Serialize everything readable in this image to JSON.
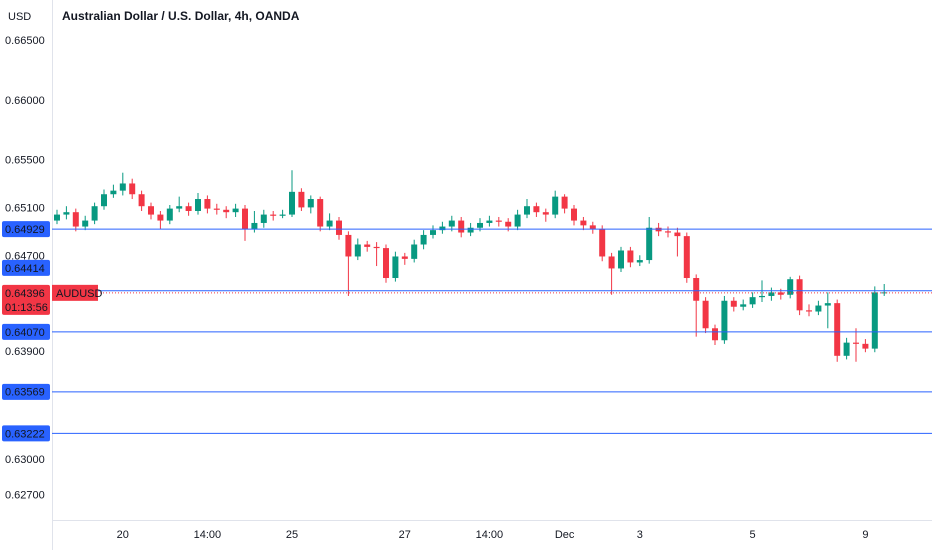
{
  "chart_data": {
    "type": "candlestick",
    "currency": "USD",
    "title": "Australian Dollar / U.S. Dollar, 4h, OANDA",
    "up_color": "#089981",
    "down_color": "#f23645",
    "line_color": "#2962ff",
    "ylim": [
      0.62498,
      0.66843
    ],
    "yticks": [
      {
        "value": 0.665,
        "label": "0.66500"
      },
      {
        "value": 0.66,
        "label": "0.66000"
      },
      {
        "value": 0.655,
        "label": "0.65500"
      },
      {
        "value": 0.651,
        "label": "0.65100"
      },
      {
        "value": 0.647,
        "label": "0.64700"
      },
      {
        "value": 0.639,
        "label": "0.63900"
      },
      {
        "value": 0.63,
        "label": "0.63000"
      },
      {
        "value": 0.627,
        "label": "0.62700"
      }
    ],
    "xticks": [
      {
        "value": 7,
        "label": "20"
      },
      {
        "value": 16,
        "label": "14:00"
      },
      {
        "value": 25,
        "label": "25"
      },
      {
        "value": 37,
        "label": "27"
      },
      {
        "value": 46,
        "label": "14:00"
      },
      {
        "value": 54,
        "label": "Dec"
      },
      {
        "value": 62,
        "label": "3"
      },
      {
        "value": 74,
        "label": "5"
      },
      {
        "value": 86,
        "label": "9"
      }
    ],
    "price_lines": [
      {
        "value": 0.64929,
        "label": "0.64929"
      },
      {
        "value": 0.64414,
        "label": "0.64414"
      },
      {
        "value": 0.6407,
        "label": "0.64070"
      },
      {
        "value": 0.63569,
        "label": "0.63569"
      },
      {
        "value": 0.63222,
        "label": "0.63222"
      }
    ],
    "last_price": {
      "value": 0.64396,
      "label": "0.64396",
      "symbol": "AUDUSD",
      "countdown": "01:13:56"
    },
    "open": [
      0.65,
      0.6505,
      0.6507,
      0.6495,
      0.65,
      0.6512,
      0.6522,
      0.6525,
      0.6531,
      0.6522,
      0.6512,
      0.6505,
      0.65,
      0.651,
      0.6512,
      0.6508,
      0.6518,
      0.651,
      0.6509,
      0.6507,
      0.651,
      0.6493,
      0.6498,
      0.6505,
      0.6504,
      0.6505,
      0.6524,
      0.6511,
      0.6518,
      0.6495,
      0.65,
      0.6488,
      0.647,
      0.648,
      0.6478,
      0.6477,
      0.6452,
      0.647,
      0.6468,
      0.648,
      0.6488,
      0.6492,
      0.6495,
      0.65,
      0.649,
      0.6494,
      0.6498,
      0.65,
      0.6499,
      0.6495,
      0.6505,
      0.6512,
      0.6507,
      0.6505,
      0.652,
      0.651,
      0.65,
      0.6496,
      0.6493,
      0.647,
      0.646,
      0.6475,
      0.6465,
      0.6467,
      0.6494,
      0.6491,
      0.649,
      0.6487,
      0.6452,
      0.6433,
      0.641,
      0.64,
      0.6433,
      0.6428,
      0.643,
      0.6436,
      0.6437,
      0.644,
      0.6438,
      0.6451,
      0.6425,
      0.6424,
      0.6429,
      0.6431,
      0.6387,
      0.6398,
      0.6397,
      0.6393,
      0.644
    ],
    "high": [
      0.6509,
      0.6512,
      0.651,
      0.6504,
      0.6515,
      0.6526,
      0.653,
      0.654,
      0.6535,
      0.6525,
      0.6515,
      0.6508,
      0.6513,
      0.652,
      0.6515,
      0.6523,
      0.6521,
      0.6514,
      0.6512,
      0.6514,
      0.6513,
      0.6508,
      0.6509,
      0.6508,
      0.6509,
      0.6542,
      0.6527,
      0.6521,
      0.652,
      0.6506,
      0.6503,
      0.6491,
      0.6485,
      0.6483,
      0.6482,
      0.648,
      0.6474,
      0.6473,
      0.6484,
      0.6492,
      0.6496,
      0.6499,
      0.6504,
      0.6503,
      0.6498,
      0.6502,
      0.6504,
      0.6503,
      0.6502,
      0.6509,
      0.6518,
      0.6515,
      0.651,
      0.6525,
      0.6522,
      0.6513,
      0.6503,
      0.6499,
      0.6496,
      0.6473,
      0.6478,
      0.6478,
      0.6471,
      0.6503,
      0.6498,
      0.6495,
      0.6494,
      0.649,
      0.6455,
      0.6436,
      0.6413,
      0.6437,
      0.6436,
      0.6434,
      0.644,
      0.645,
      0.6444,
      0.6443,
      0.6453,
      0.6454,
      0.643,
      0.6433,
      0.644,
      0.6434,
      0.6402,
      0.641,
      0.6401,
      0.6445,
      0.6447
    ],
    "low": [
      0.6497,
      0.6501,
      0.6491,
      0.6492,
      0.6497,
      0.6509,
      0.6519,
      0.6521,
      0.6518,
      0.6508,
      0.6501,
      0.6493,
      0.6497,
      0.6507,
      0.6504,
      0.6505,
      0.6506,
      0.6505,
      0.6502,
      0.6503,
      0.6483,
      0.649,
      0.6494,
      0.65,
      0.6502,
      0.6503,
      0.6508,
      0.6506,
      0.6491,
      0.6492,
      0.6484,
      0.6437,
      0.6467,
      0.6474,
      0.6462,
      0.6448,
      0.6449,
      0.6463,
      0.6465,
      0.6476,
      0.6485,
      0.6489,
      0.6491,
      0.6486,
      0.6487,
      0.6491,
      0.6495,
      0.6495,
      0.6491,
      0.6492,
      0.6502,
      0.6503,
      0.6499,
      0.6502,
      0.6506,
      0.6496,
      0.6492,
      0.6489,
      0.6466,
      0.6438,
      0.6457,
      0.6461,
      0.6462,
      0.6464,
      0.6487,
      0.6486,
      0.647,
      0.6448,
      0.6403,
      0.6406,
      0.6396,
      0.6397,
      0.6424,
      0.6425,
      0.6427,
      0.6432,
      0.6433,
      0.6434,
      0.6435,
      0.6421,
      0.642,
      0.6421,
      0.641,
      0.6382,
      0.6384,
      0.6382,
      0.639,
      0.639,
      0.6437
    ],
    "close": [
      0.6505,
      0.6507,
      0.6495,
      0.65,
      0.6512,
      0.6522,
      0.6525,
      0.6531,
      0.6522,
      0.6512,
      0.6505,
      0.65,
      0.651,
      0.6512,
      0.6508,
      0.6518,
      0.651,
      0.6509,
      0.6507,
      0.651,
      0.6493,
      0.6498,
      0.6505,
      0.6504,
      0.6505,
      0.6524,
      0.6511,
      0.6518,
      0.6495,
      0.65,
      0.6488,
      0.647,
      0.648,
      0.6478,
      0.6477,
      0.6452,
      0.647,
      0.6468,
      0.648,
      0.6488,
      0.6492,
      0.6495,
      0.65,
      0.649,
      0.6494,
      0.6498,
      0.65,
      0.6499,
      0.6495,
      0.6505,
      0.6512,
      0.6507,
      0.6505,
      0.652,
      0.651,
      0.65,
      0.6496,
      0.6493,
      0.647,
      0.646,
      0.6475,
      0.6465,
      0.6467,
      0.6494,
      0.6491,
      0.649,
      0.6487,
      0.6452,
      0.6433,
      0.641,
      0.64,
      0.6433,
      0.6428,
      0.643,
      0.6436,
      0.6437,
      0.644,
      0.6438,
      0.6451,
      0.6425,
      0.6424,
      0.6429,
      0.6431,
      0.6387,
      0.6398,
      0.6397,
      0.6393,
      0.644,
      0.644
    ]
  }
}
